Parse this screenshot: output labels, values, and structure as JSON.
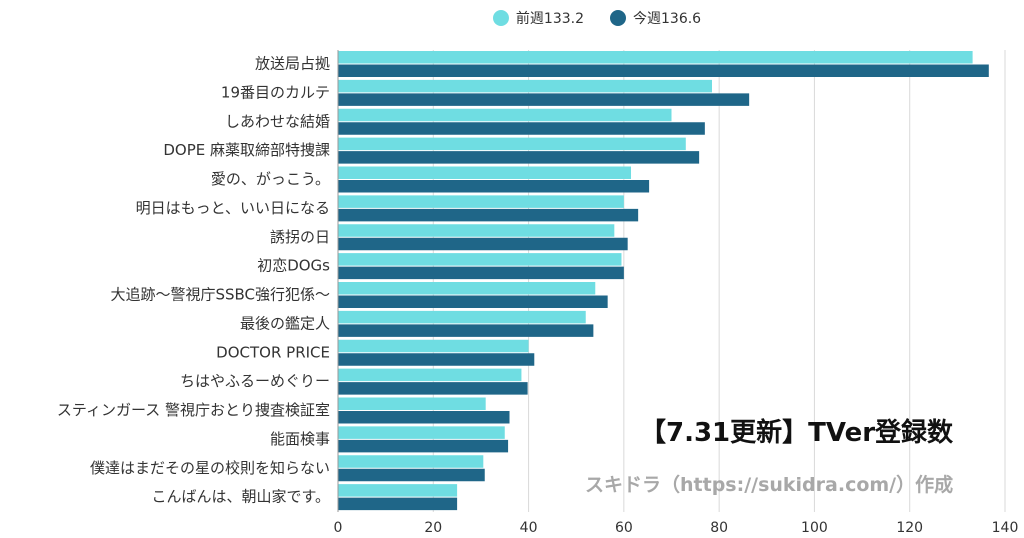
{
  "colors": {
    "prev": "#6fdde2",
    "curr": "#1f6688",
    "grid": "#d9d9d9",
    "axis": "#999999",
    "text": "#333333"
  },
  "chart_data": {
    "type": "bar",
    "orientation": "horizontal",
    "title": "【7.31更新】TVer登録数",
    "credit": "スキドラ（https://sukidra.com/）作成",
    "legend_position": "top",
    "grid": true,
    "xlim": [
      0,
      140
    ],
    "x_ticks": [
      0,
      20,
      40,
      60,
      80,
      100,
      120,
      140
    ],
    "categories": [
      "放送局占拠",
      "19番目のカルテ",
      "しあわせな結婚",
      "DOPE 麻薬取締部特捜課",
      "愛の、がっこう。",
      "明日はもっと、いい日になる",
      "誘拐の日",
      "初恋DOGs",
      "大追跡～警視庁SSBC強行犯係～",
      "最後の鑑定人",
      "DOCTOR PRICE",
      "ちはやふるーめぐりー",
      "スティンガース 警視庁おとり捜査検証室",
      "能面検事",
      "僕達はまだその星の校則を知らない",
      "こんばんは、朝山家です。"
    ],
    "series": [
      {
        "name": "前週133.2",
        "values": [
          133.2,
          78.5,
          70,
          73,
          61.5,
          60,
          58,
          59.5,
          54,
          52,
          40,
          38.5,
          31,
          35,
          30.5,
          25
        ]
      },
      {
        "name": "今週136.6",
        "values": [
          136.6,
          86.3,
          77,
          75.8,
          65.3,
          63,
          60.8,
          60,
          56.6,
          53.6,
          41.2,
          39.8,
          36,
          35.7,
          30.8,
          25
        ]
      }
    ]
  }
}
